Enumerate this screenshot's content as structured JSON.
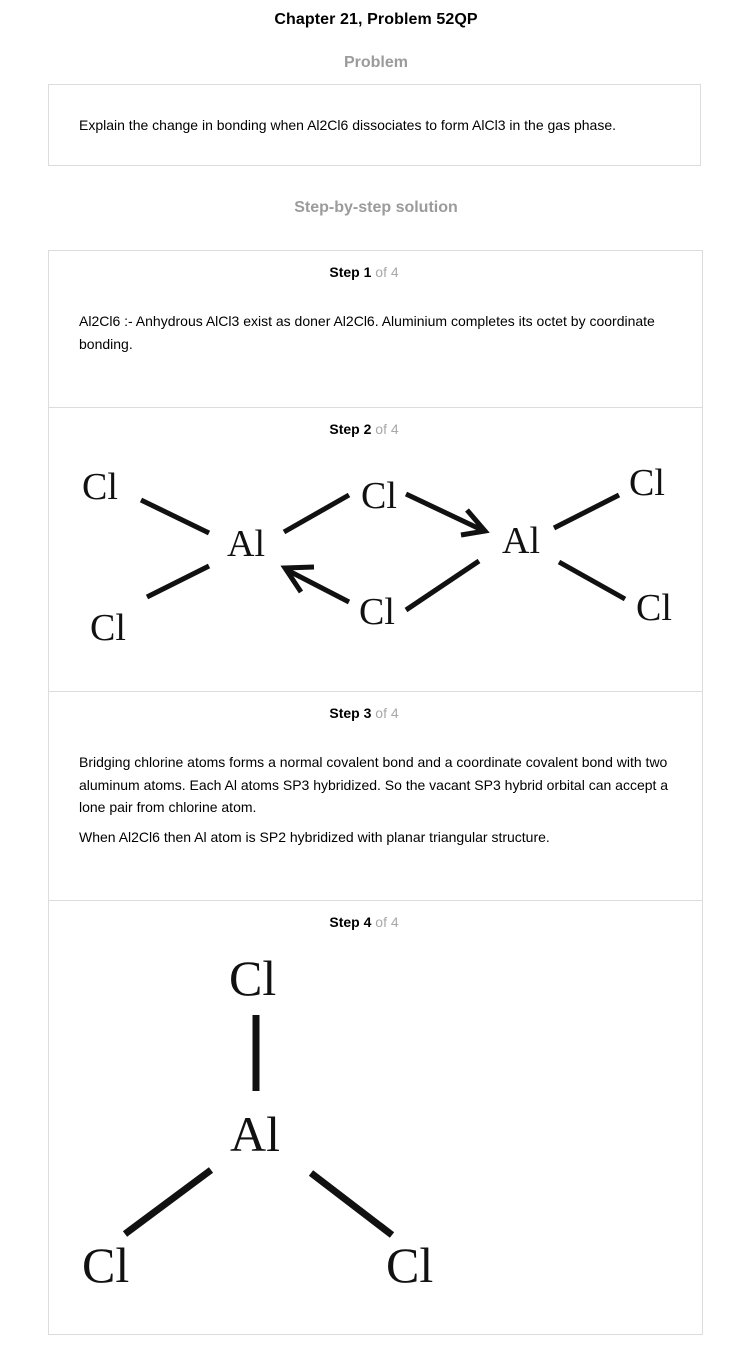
{
  "header": {
    "title": "Chapter 21, Problem 52QP"
  },
  "problem": {
    "heading": "Problem",
    "text": "Explain the change in bonding when Al2Cl6 dissociates to form AlCl3 in the gas phase."
  },
  "solution": {
    "heading": "Step-by-step solution",
    "steps": [
      {
        "number": "1",
        "of": "of 4",
        "paragraphs": [
          "Al2Cl6 :- Anhydrous AlCl3 exist as doner Al2Cl6. Aluminium completes its octet by coordinate bonding."
        ]
      },
      {
        "number": "2",
        "of": "of 4",
        "figure": {
          "atoms": [
            "Cl",
            "Cl",
            "Al",
            "Cl",
            "Cl",
            "Al",
            "Cl",
            "Cl"
          ]
        }
      },
      {
        "number": "3",
        "of": "of 4",
        "paragraphs": [
          "Bridging chlorine atoms forms a normal covalent bond and a coordinate covalent bond with two aluminum atoms. Each Al atoms SP3 hybridized. So the vacant SP3 hybrid orbital can accept a lone pair from chlorine atom.",
          "When Al2Cl6 then Al atom is SP2 hybridized with planar triangular structure."
        ]
      },
      {
        "number": "4",
        "of": "of 4",
        "figure": {
          "atoms": [
            "Cl",
            "Al",
            "Cl",
            "Cl"
          ]
        }
      }
    ]
  }
}
